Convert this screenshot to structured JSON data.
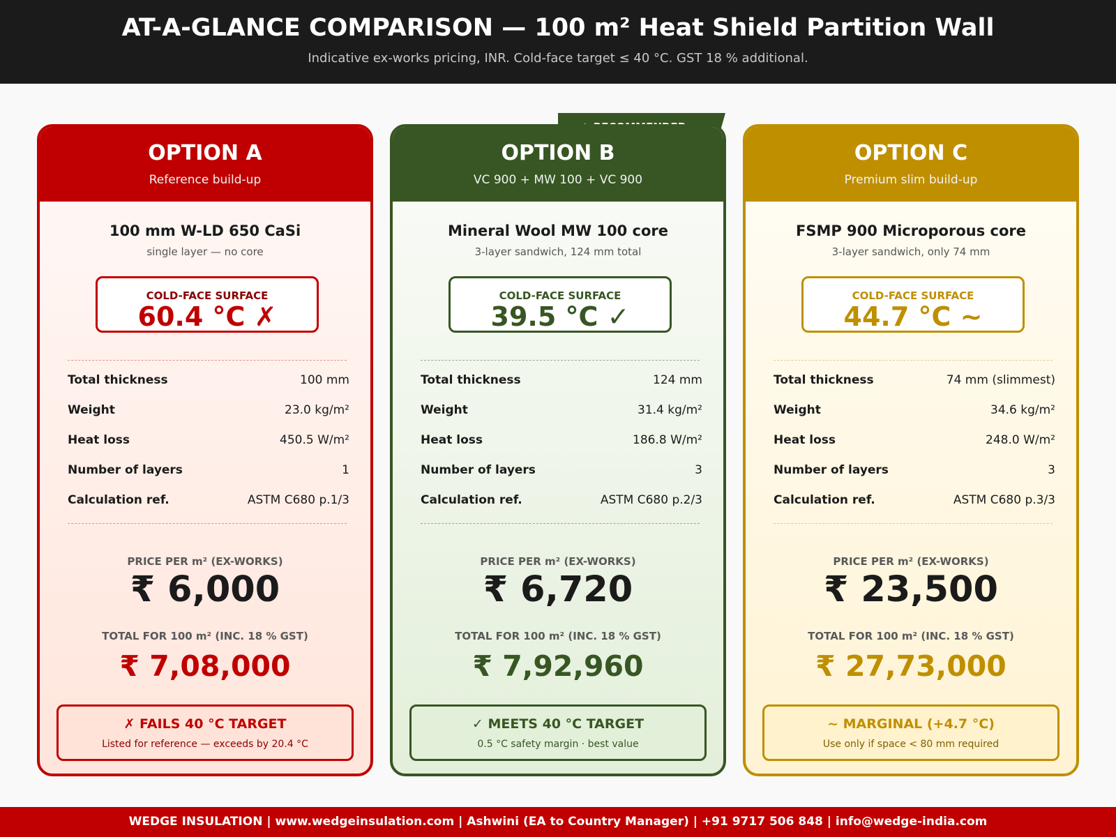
{
  "header": {
    "title": "AT-A-GLANCE COMPARISON — 100 m² Heat Shield Partition Wall",
    "subtitle": "Indicative ex-works pricing, INR. Cold-face target ≤ 40 °C. GST 18 % additional."
  },
  "ribbon": "★ RECOMMENDED",
  "options": [
    {
      "name": "OPTION A",
      "subtitle": "Reference build-up",
      "material": "100 mm W-LD 650 CaSi",
      "material_note": "single layer — no core",
      "cold_face_label": "COLD-FACE SURFACE",
      "cold_face_value": "60.4 °C ✗",
      "rows": [
        [
          "Total thickness",
          "100 mm"
        ],
        [
          "Weight",
          "23.0 kg/m²"
        ],
        [
          "Heat loss",
          "450.5 W/m²"
        ],
        [
          "Number of layers",
          "1"
        ],
        [
          "Calculation ref.",
          "ASTM C680 p.1/3"
        ]
      ],
      "price_label": "PRICE PER m² (EX-WORKS)",
      "price": "₹ 6,000",
      "total_label": "TOTAL FOR 100 m² (INC. 18 % GST)",
      "total": "₹ 7,08,000",
      "verdict": "✗ FAILS 40 °C TARGET",
      "verdict_note": "Listed for reference — exceeds by 20.4 °C"
    },
    {
      "name": "OPTION B",
      "subtitle": "VC 900 + MW 100 + VC 900",
      "material": "Mineral Wool MW 100 core",
      "material_note": "3-layer sandwich, 124 mm total",
      "cold_face_label": "COLD-FACE SURFACE",
      "cold_face_value": "39.5 °C ✓",
      "rows": [
        [
          "Total thickness",
          "124 mm"
        ],
        [
          "Weight",
          "31.4 kg/m²"
        ],
        [
          "Heat loss",
          "186.8 W/m²"
        ],
        [
          "Number of layers",
          "3"
        ],
        [
          "Calculation ref.",
          "ASTM C680 p.2/3"
        ]
      ],
      "price_label": "PRICE PER m² (EX-WORKS)",
      "price": "₹ 6,720",
      "total_label": "TOTAL FOR 100 m² (INC. 18 % GST)",
      "total": "₹ 7,92,960",
      "verdict": "✓ MEETS 40 °C TARGET",
      "verdict_note": "0.5 °C safety margin · best value"
    },
    {
      "name": "OPTION C",
      "subtitle": "Premium slim build-up",
      "material": "FSMP 900 Microporous core",
      "material_note": "3-layer sandwich, only 74 mm",
      "cold_face_label": "COLD-FACE SURFACE",
      "cold_face_value": "44.7 °C ~",
      "rows": [
        [
          "Total thickness",
          "74 mm (slimmest)"
        ],
        [
          "Weight",
          "34.6 kg/m²"
        ],
        [
          "Heat loss",
          "248.0 W/m²"
        ],
        [
          "Number of layers",
          "3"
        ],
        [
          "Calculation ref.",
          "ASTM C680 p.3/3"
        ]
      ],
      "price_label": "PRICE PER m² (EX-WORKS)",
      "price": "₹ 23,500",
      "total_label": "TOTAL FOR 100 m² (INC. 18 % GST)",
      "total": "₹ 27,73,000",
      "verdict": "~ MARGINAL (+4.7 °C)",
      "verdict_note": "Use only if space < 80 mm required"
    }
  ],
  "footer": "WEDGE INSULATION | www.wedgeinsulation.com | Ashwini (EA to Country Manager) | +91 9717 506 848 | info@wedge-india.com"
}
